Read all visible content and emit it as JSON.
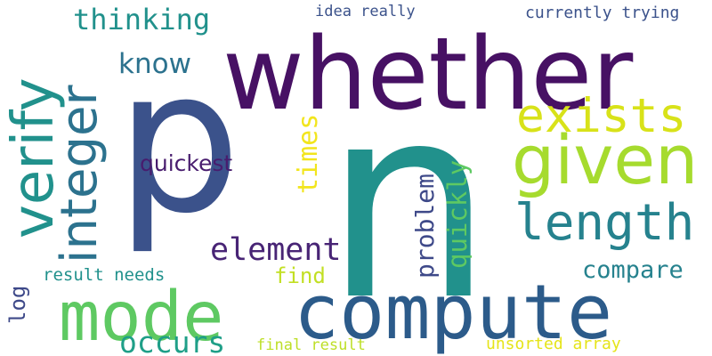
{
  "cloud": {
    "background": "#ffffff",
    "palette": [
      "#471164",
      "#3b528b",
      "#2c728e",
      "#21918c",
      "#28ae80",
      "#5ec962",
      "#addc30",
      "#fde725"
    ],
    "words": [
      {
        "text": "whether",
        "color": "#471164"
      },
      {
        "text": "n",
        "color": "#21918c"
      },
      {
        "text": "p",
        "color": "#3b528b"
      },
      {
        "text": "verify",
        "color": "#21918c"
      },
      {
        "text": "integer",
        "color": "#2c728e"
      },
      {
        "text": "mode",
        "color": "#5ec962"
      },
      {
        "text": "compute",
        "color": "#2c5b8a"
      },
      {
        "text": "given",
        "color": "#a6db2e"
      },
      {
        "text": "exists",
        "color": "#d8e219"
      },
      {
        "text": "length",
        "color": "#26828e"
      },
      {
        "text": "thinking",
        "color": "#21918c"
      },
      {
        "text": "know",
        "color": "#2c728e"
      },
      {
        "text": "idea really",
        "color": "#3b528b"
      },
      {
        "text": "currently trying",
        "color": "#3b528b"
      },
      {
        "text": "times",
        "color": "#f2e51d"
      },
      {
        "text": "quickest",
        "color": "#481c6e"
      },
      {
        "text": "problem",
        "color": "#3e4989"
      },
      {
        "text": "quickly",
        "color": "#5ec962"
      },
      {
        "text": "element",
        "color": "#482475"
      },
      {
        "text": "find",
        "color": "#c2df23"
      },
      {
        "text": "compare",
        "color": "#26828e"
      },
      {
        "text": "log",
        "color": "#3e4989"
      },
      {
        "text": "result needs",
        "color": "#21918c"
      },
      {
        "text": "occurs",
        "color": "#1f9f88"
      },
      {
        "text": "final result",
        "color": "#bddf26"
      },
      {
        "text": "unsorted array",
        "color": "#e5e419"
      }
    ]
  }
}
